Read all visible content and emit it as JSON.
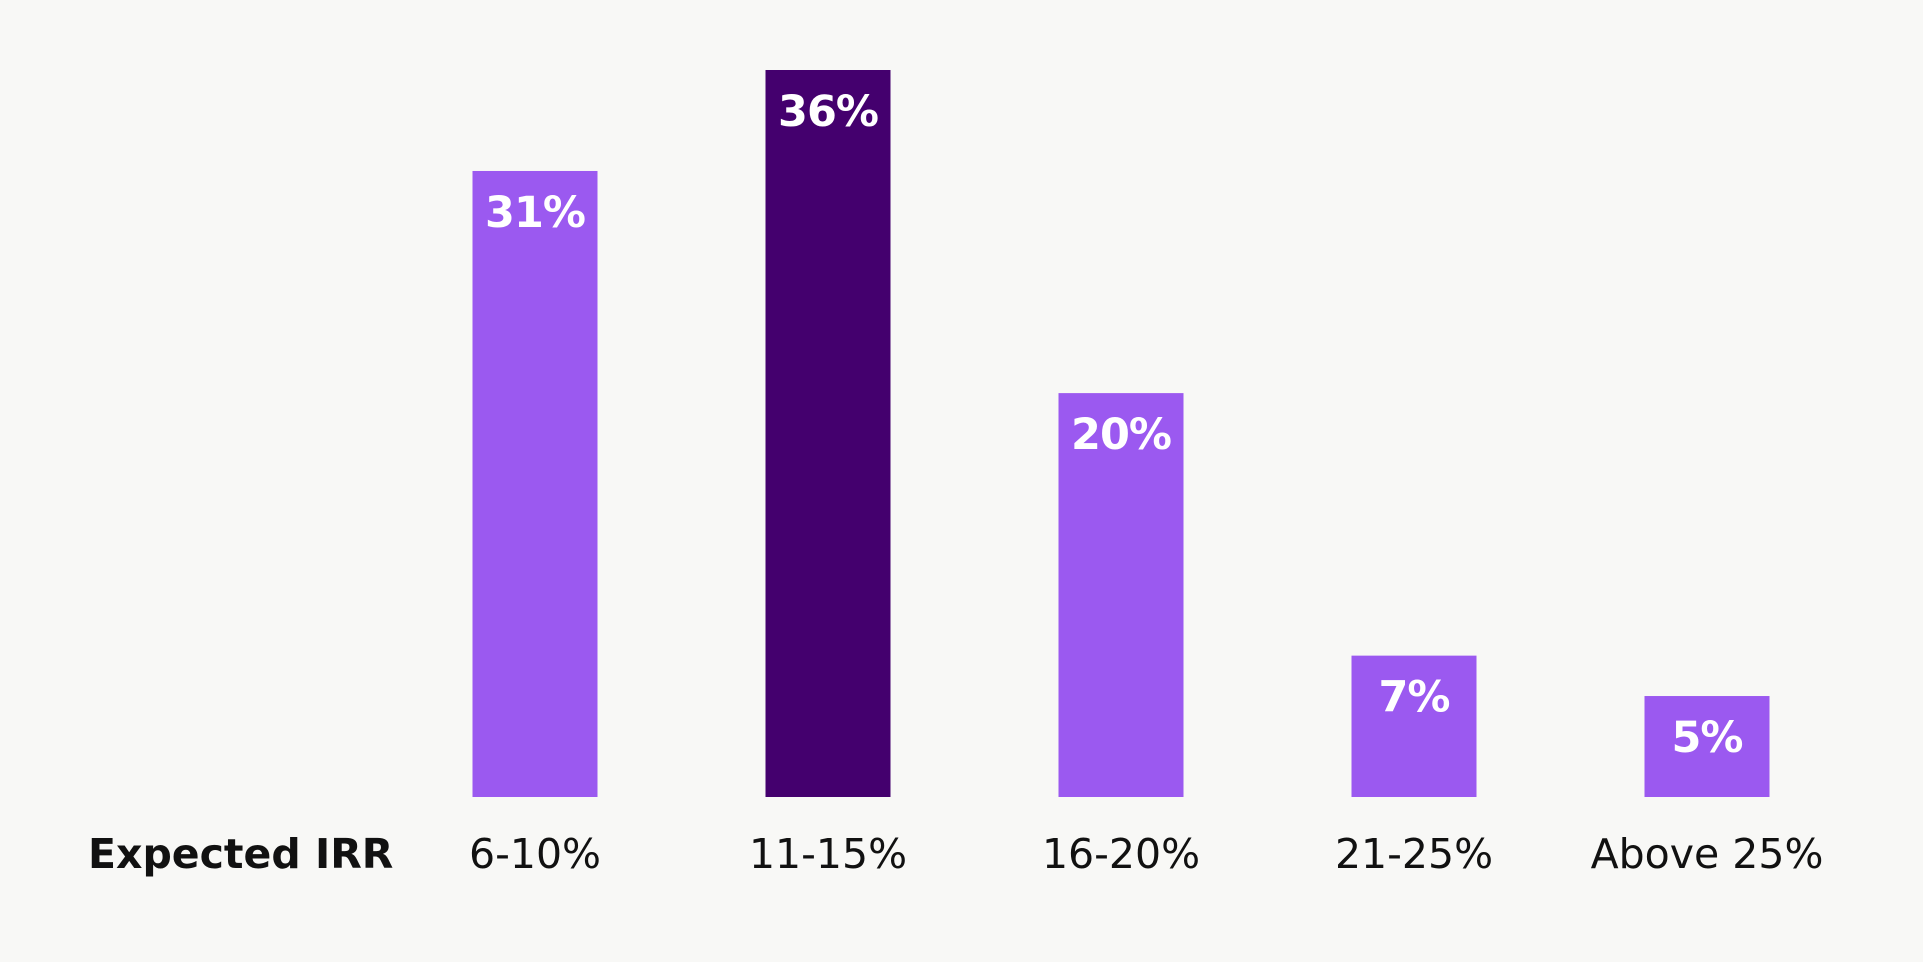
{
  "chart_data": {
    "type": "bar",
    "xlabel": "Expected IRR",
    "categories": [
      "6-10%",
      "11-15%",
      "16-20%",
      "21-25%",
      "Above 25%"
    ],
    "values": [
      31,
      36,
      20,
      7,
      5
    ],
    "value_labels": [
      "31%",
      "36%",
      "20%",
      "7%",
      "5%"
    ],
    "ylim": [
      0,
      36
    ],
    "highlight_index": 1,
    "grid": false,
    "legend": "none",
    "colors": {
      "bar": "#9b59f0",
      "highlight": "#44006e",
      "label": "#ffffff",
      "background": "#f8f8f6"
    }
  }
}
